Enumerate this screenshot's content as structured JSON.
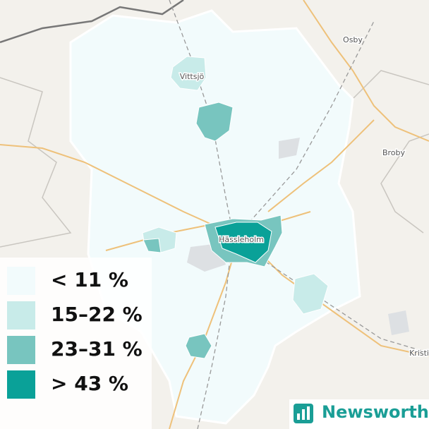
{
  "map": {
    "places": [
      {
        "name": "Osby"
      },
      {
        "name": "Vittsjö"
      },
      {
        "name": "Broby"
      },
      {
        "name": "Hässleholm"
      },
      {
        "name": "Kristi"
      }
    ],
    "legend": [
      {
        "label": "< 11 %",
        "color": "#f2fbfc"
      },
      {
        "label": "15–22 %",
        "color": "#c8ebe9"
      },
      {
        "label": "23–31 %",
        "color": "#78c5bf"
      },
      {
        "label": "> 43 %",
        "color": "#0aa198"
      }
    ],
    "brand": "Newsworthy",
    "brand_color": "#1a9e96"
  }
}
